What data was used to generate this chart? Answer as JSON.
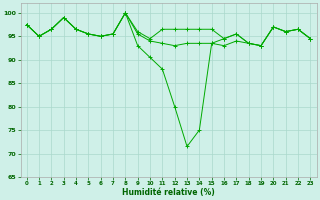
{
  "xlabel": "Humidité relative (%)",
  "background_color": "#cff0e8",
  "line_color": "#00aa00",
  "grid_color": "#aad8cc",
  "xlim": [
    -0.5,
    23.5
  ],
  "ylim": [
    65,
    102
  ],
  "yticks": [
    65,
    70,
    75,
    80,
    85,
    90,
    95,
    100
  ],
  "xticks": [
    0,
    1,
    2,
    3,
    4,
    5,
    6,
    7,
    8,
    9,
    10,
    11,
    12,
    13,
    14,
    15,
    16,
    17,
    18,
    19,
    20,
    21,
    22,
    23
  ],
  "series": [
    [
      97.5,
      95.0,
      96.5,
      99.0,
      96.5,
      95.5,
      95.0,
      95.5,
      100.0,
      93.0,
      90.5,
      88.0,
      80.0,
      71.5,
      75.0,
      93.5,
      93.0,
      94.0,
      93.5,
      93.0,
      97.0,
      96.0,
      96.5,
      94.5
    ],
    [
      97.5,
      95.0,
      96.5,
      99.0,
      96.5,
      95.5,
      95.0,
      95.5,
      100.0,
      95.5,
      94.0,
      93.5,
      93.0,
      93.5,
      93.5,
      93.5,
      94.5,
      95.5,
      93.5,
      93.0,
      97.0,
      96.0,
      96.5,
      94.5
    ],
    [
      97.5,
      95.0,
      96.5,
      99.0,
      96.5,
      95.5,
      95.0,
      95.5,
      100.0,
      96.0,
      94.5,
      96.5,
      96.5,
      96.5,
      96.5,
      96.5,
      94.5,
      95.5,
      93.5,
      93.0,
      97.0,
      96.0,
      96.5,
      94.5
    ]
  ]
}
